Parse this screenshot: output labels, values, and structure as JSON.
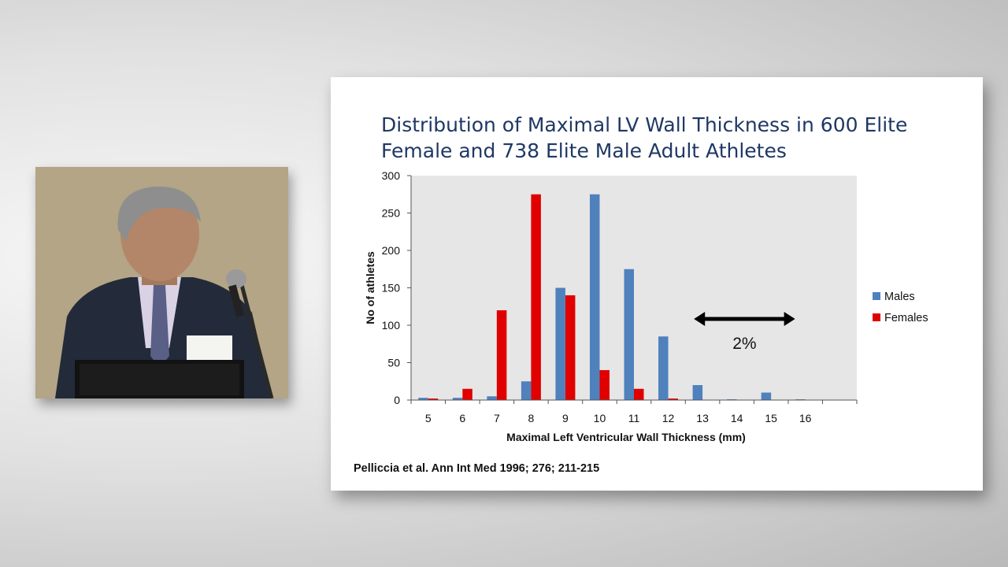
{
  "slide": {
    "title": "Distribution of Maximal LV Wall Thickness in 600 Elite Female and 738 Elite Male Adult Athletes",
    "citation": "Pelliccia  et al. Ann Int Med 1996; 276; 211-215"
  },
  "speaker": {
    "name_badge_text": ""
  },
  "chart_data": {
    "type": "bar",
    "title": "",
    "xlabel": "Maximal Left Ventricular Wall Thickness (mm)",
    "ylabel": "No  of athletes",
    "categories": [
      "5",
      "6",
      "7",
      "8",
      "9",
      "10",
      "11",
      "12",
      "13",
      "14",
      "15",
      "16",
      ""
    ],
    "ylim": [
      0,
      300
    ],
    "yticks": [
      0,
      50,
      100,
      150,
      200,
      250,
      300
    ],
    "grid": false,
    "legend_position": "right",
    "series": [
      {
        "name": "Males",
        "color": "#4f81bd",
        "values": [
          3,
          3,
          5,
          25,
          150,
          275,
          175,
          85,
          20,
          1,
          10,
          1,
          0
        ]
      },
      {
        "name": "Females",
        "color": "#e00000",
        "values": [
          2,
          15,
          120,
          275,
          140,
          40,
          15,
          2,
          0,
          0,
          0,
          0,
          0
        ]
      }
    ],
    "annotation": {
      "text": "2%",
      "arrow": "double-headed",
      "from_category": "13",
      "to_category": "16"
    }
  }
}
